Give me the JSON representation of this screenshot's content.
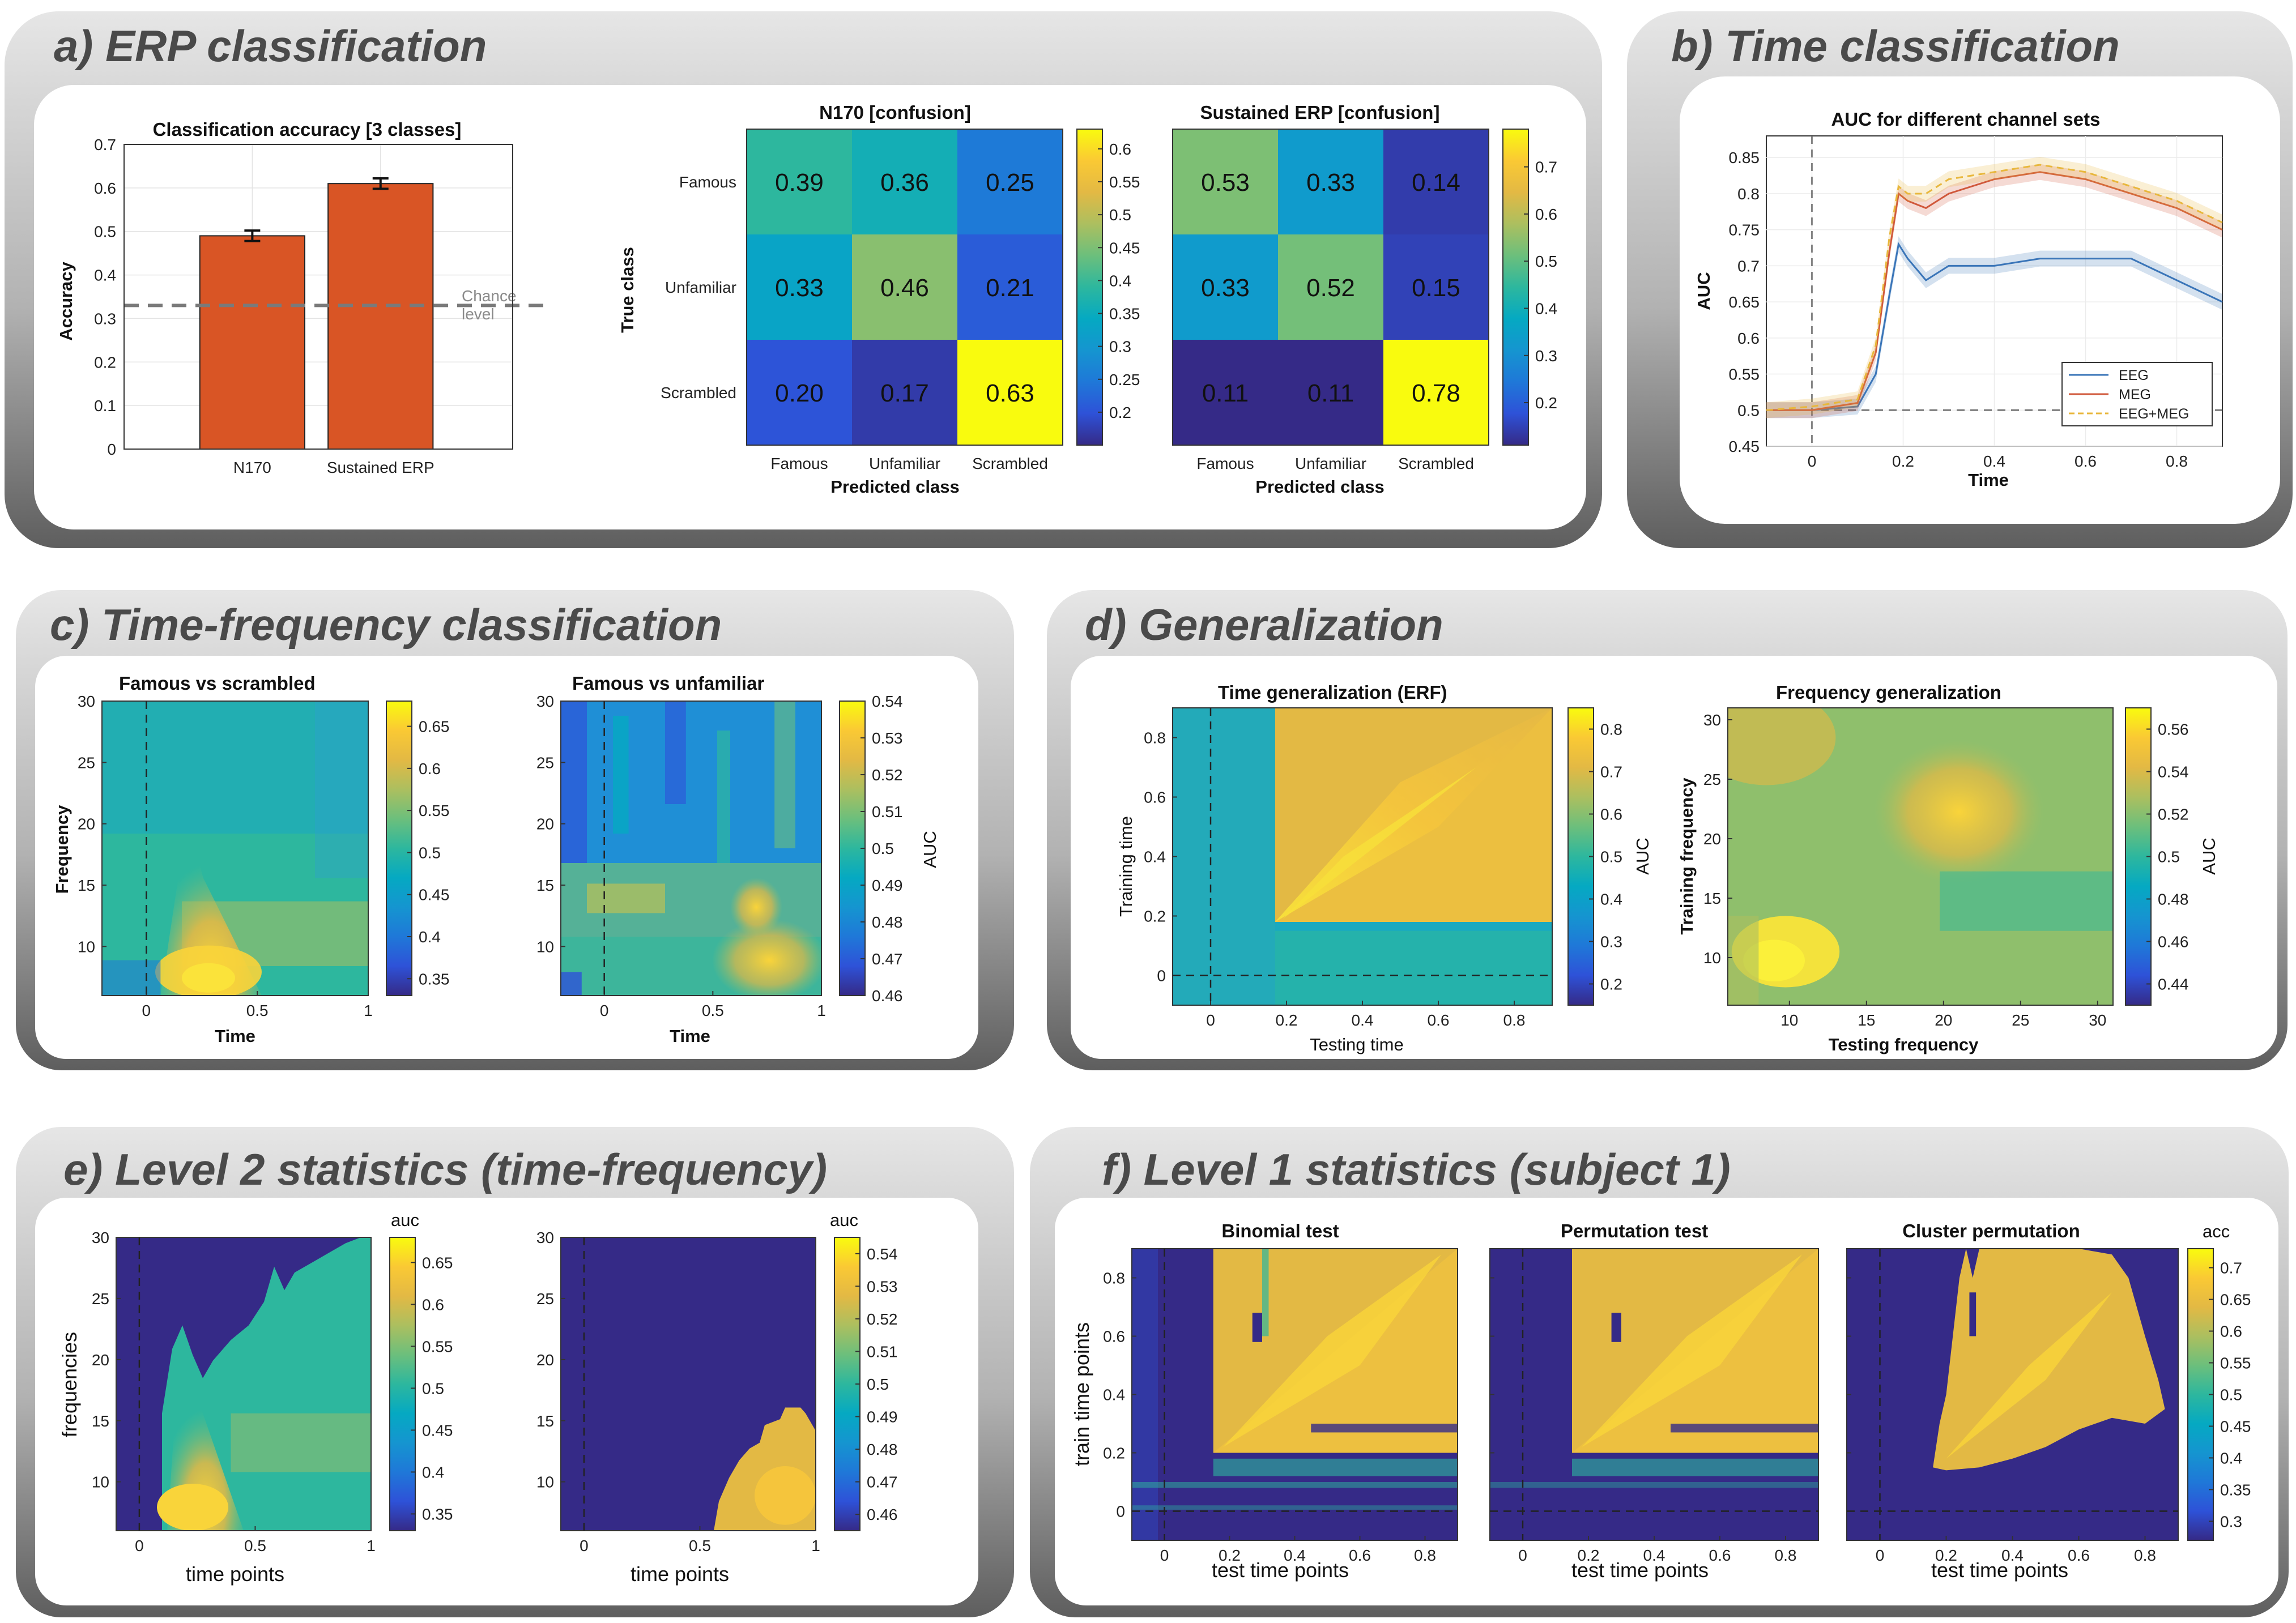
{
  "panels": {
    "a": "a) ERP classification",
    "b": "b) Time classification",
    "c": "c) Time-frequency classification",
    "d": "d) Generalization",
    "e": "e) Level 2 statistics (time-frequency)",
    "f": "f) Level 1 statistics (subject 1)"
  },
  "chart_data": [
    {
      "id": "a-bar",
      "type": "bar",
      "title": "Classification accuracy [3 classes]",
      "ylabel": "Accuracy",
      "categories": [
        "N170",
        "Sustained ERP"
      ],
      "values": [
        0.49,
        0.61
      ],
      "errors": [
        0.012,
        0.012
      ],
      "ylim": [
        0,
        0.7
      ],
      "yticks": [
        "0",
        "0.1",
        "0.2",
        "0.3",
        "0.4",
        "0.5",
        "0.6",
        "0.7"
      ],
      "chance_value": 0.33,
      "chance_label": [
        "Chance",
        "level"
      ],
      "bar_color": "#d95525",
      "grid": true
    },
    {
      "id": "a-conf1",
      "type": "heatmap",
      "title": "N170 [confusion]",
      "xlabel": "Predicted class",
      "ylabel": "True class",
      "labels": [
        "Famous",
        "Unfamiliar",
        "Scrambled"
      ],
      "values": [
        [
          "0.39",
          "0.36",
          "0.25"
        ],
        [
          "0.33",
          "0.46",
          "0.21"
        ],
        [
          "0.20",
          "0.17",
          "0.63"
        ]
      ],
      "clim": [
        0.15,
        0.63
      ],
      "cticks": [
        "0.2",
        "0.25",
        "0.3",
        "0.35",
        "0.4",
        "0.45",
        "0.5",
        "0.55",
        "0.6"
      ]
    },
    {
      "id": "a-conf2",
      "type": "heatmap",
      "title": "Sustained ERP [confusion]",
      "xlabel": "Predicted class",
      "labels": [
        "Famous",
        "Unfamiliar",
        "Scrambled"
      ],
      "values": [
        [
          "0.53",
          "0.33",
          "0.14"
        ],
        [
          "0.33",
          "0.52",
          "0.15"
        ],
        [
          "0.11",
          "0.11",
          "0.78"
        ]
      ],
      "clim": [
        0.11,
        0.78
      ],
      "cticks": [
        "0.2",
        "0.3",
        "0.4",
        "0.5",
        "0.6",
        "0.7"
      ]
    },
    {
      "id": "b-line",
      "type": "line",
      "title": "AUC for different channel sets",
      "xlabel": "Time",
      "ylabel": "AUC",
      "xlim": [
        -0.1,
        0.9
      ],
      "ylim": [
        0.45,
        0.88
      ],
      "xticks": [
        "0",
        "0.2",
        "0.4",
        "0.6",
        "0.8"
      ],
      "yticks": [
        "0.45",
        "0.5",
        "0.55",
        "0.6",
        "0.65",
        "0.7",
        "0.75",
        "0.8",
        "0.85"
      ],
      "chance_value": 0.5,
      "legend_position": "bottom-right",
      "x": [
        -0.1,
        0.0,
        0.1,
        0.14,
        0.17,
        0.19,
        0.21,
        0.25,
        0.3,
        0.4,
        0.5,
        0.6,
        0.7,
        0.8,
        0.9
      ],
      "series": [
        {
          "name": "EEG",
          "color": "#3a75b8",
          "values": [
            0.5,
            0.5,
            0.505,
            0.55,
            0.66,
            0.73,
            0.71,
            0.68,
            0.7,
            0.7,
            0.71,
            0.71,
            0.71,
            0.68,
            0.65
          ]
        },
        {
          "name": "MEG",
          "color": "#d0583b",
          "values": [
            0.5,
            0.5,
            0.51,
            0.58,
            0.72,
            0.8,
            0.79,
            0.78,
            0.8,
            0.82,
            0.83,
            0.82,
            0.8,
            0.78,
            0.75
          ]
        },
        {
          "name": "EEG+MEG",
          "color": "#e8b73c",
          "dashed": true,
          "values": [
            0.5,
            0.505,
            0.515,
            0.59,
            0.74,
            0.81,
            0.8,
            0.8,
            0.82,
            0.83,
            0.84,
            0.83,
            0.81,
            0.79,
            0.76
          ]
        }
      ]
    },
    {
      "id": "c-tf1",
      "type": "heatmap",
      "title": "Famous vs scrambled",
      "xlabel": "Time",
      "ylabel": "Frequency",
      "xlim": [
        -0.2,
        1.0
      ],
      "ylim": [
        6,
        30
      ],
      "xticks": [
        "0",
        "0.5",
        "1"
      ],
      "yticks": [
        "10",
        "15",
        "20",
        "25",
        "30"
      ],
      "clim": [
        0.33,
        0.68
      ],
      "cticks": [
        "0.35",
        "0.4",
        "0.45",
        "0.5",
        "0.55",
        "0.6",
        "0.65"
      ]
    },
    {
      "id": "c-tf2",
      "type": "heatmap",
      "title": "Famous vs unfamiliar",
      "xlabel": "Time",
      "clabel": "AUC",
      "xlim": [
        -0.2,
        1.0
      ],
      "ylim": [
        6,
        30
      ],
      "xticks": [
        "0",
        "0.5",
        "1"
      ],
      "yticks": [
        "10",
        "15",
        "20",
        "25",
        "30"
      ],
      "clim": [
        0.46,
        0.54
      ],
      "cticks": [
        "0.46",
        "0.47",
        "0.48",
        "0.49",
        "0.5",
        "0.51",
        "0.52",
        "0.53",
        "0.54"
      ]
    },
    {
      "id": "d-tg",
      "type": "heatmap",
      "title": "Time generalization (ERF)",
      "xlabel": "Testing time",
      "ylabel": "Training time",
      "clabel": "AUC",
      "xlim": [
        -0.1,
        0.9
      ],
      "ylim": [
        -0.1,
        0.9
      ],
      "xticks": [
        "0",
        "0.2",
        "0.4",
        "0.6",
        "0.8"
      ],
      "yticks": [
        "0",
        "0.2",
        "0.4",
        "0.6",
        "0.8"
      ],
      "clim": [
        0.15,
        0.85
      ],
      "cticks": [
        "0.2",
        "0.3",
        "0.4",
        "0.5",
        "0.6",
        "0.7",
        "0.8"
      ]
    },
    {
      "id": "d-fg",
      "type": "heatmap",
      "title": "Frequency generalization",
      "xlabel": "Testing frequency",
      "ylabel": "Training frequency",
      "clabel": "AUC",
      "xlim": [
        6,
        31
      ],
      "ylim": [
        6,
        31
      ],
      "xticks": [
        "10",
        "15",
        "20",
        "25",
        "30"
      ],
      "yticks": [
        "10",
        "15",
        "20",
        "25",
        "30"
      ],
      "clim": [
        0.43,
        0.57
      ],
      "cticks": [
        "0.44",
        "0.46",
        "0.48",
        "0.5",
        "0.52",
        "0.54",
        "0.56"
      ]
    },
    {
      "id": "e-s1",
      "type": "heatmap",
      "xlabel": "time points",
      "ylabel": "frequencies",
      "clabel": "auc",
      "xlim": [
        -0.1,
        1.0
      ],
      "ylim": [
        6,
        30
      ],
      "xticks": [
        "0",
        "0.5",
        "1"
      ],
      "yticks": [
        "10",
        "15",
        "20",
        "25",
        "30"
      ],
      "clim": [
        0.33,
        0.68
      ],
      "cticks": [
        "0.35",
        "0.4",
        "0.45",
        "0.5",
        "0.55",
        "0.6",
        "0.65"
      ]
    },
    {
      "id": "e-s2",
      "type": "heatmap",
      "xlabel": "time points",
      "clabel": "auc",
      "xlim": [
        -0.1,
        1.0
      ],
      "ylim": [
        6,
        30
      ],
      "xticks": [
        "0",
        "0.5",
        "1"
      ],
      "yticks": [
        "10",
        "15",
        "20",
        "25",
        "30"
      ],
      "clim": [
        0.455,
        0.545
      ],
      "cticks": [
        "0.46",
        "0.47",
        "0.48",
        "0.49",
        "0.5",
        "0.51",
        "0.52",
        "0.53",
        "0.54"
      ]
    },
    {
      "id": "f-s1",
      "type": "heatmap",
      "title": "Binomial test",
      "xlabel": "test time points",
      "ylabel": "train time points",
      "xlim": [
        -0.1,
        0.9
      ],
      "ylim": [
        -0.1,
        0.9
      ],
      "xticks": [
        "0",
        "0.2",
        "0.4",
        "0.6",
        "0.8"
      ],
      "yticks": [
        "0",
        "0.2",
        "0.4",
        "0.6",
        "0.8"
      ]
    },
    {
      "id": "f-s2",
      "type": "heatmap",
      "title": "Permutation test",
      "xlabel": "test time points",
      "xlim": [
        -0.1,
        0.9
      ],
      "ylim": [
        -0.1,
        0.9
      ],
      "xticks": [
        "0",
        "0.2",
        "0.4",
        "0.6",
        "0.8"
      ],
      "yticks": [
        "0",
        "0.2",
        "0.4",
        "0.6",
        "0.8"
      ]
    },
    {
      "id": "f-s3",
      "type": "heatmap",
      "title": "Cluster permutation",
      "xlabel": "test time points",
      "clabel": "acc",
      "xlim": [
        -0.1,
        0.9
      ],
      "ylim": [
        -0.1,
        0.9
      ],
      "xticks": [
        "0",
        "0.2",
        "0.4",
        "0.6",
        "0.8"
      ],
      "yticks": [
        "0",
        "0.2",
        "0.4",
        "0.6",
        "0.8"
      ],
      "clim": [
        0.27,
        0.73
      ],
      "cticks": [
        "0.3",
        "0.35",
        "0.4",
        "0.45",
        "0.5",
        "0.55",
        "0.6",
        "0.65",
        "0.7"
      ]
    }
  ]
}
